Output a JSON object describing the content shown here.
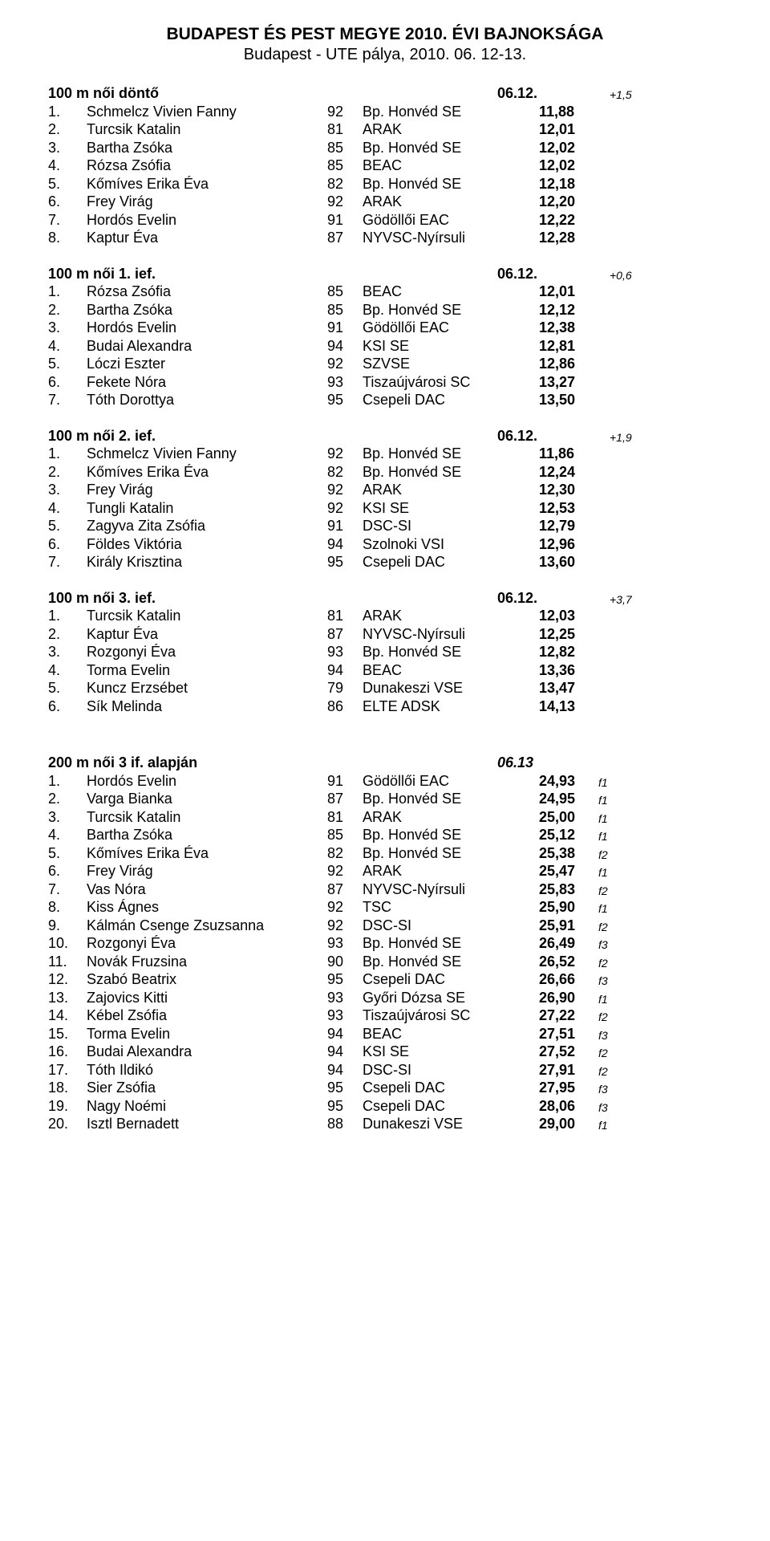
{
  "header": {
    "title": "BUDAPEST ÉS PEST MEGYE 2010. ÉVI BAJNOKSÁGA",
    "subtitle": "Budapest - UTE pálya, 2010. 06. 12-13."
  },
  "sections": [
    {
      "title": "100 m női döntő",
      "date": "06.12.",
      "note": "+1,5",
      "rows": [
        {
          "rank": "1.",
          "name": "Schmelcz Vivien Fanny",
          "yr": "92",
          "club": "Bp. Honvéd SE",
          "time": "11,88",
          "flag": ""
        },
        {
          "rank": "2.",
          "name": "Turcsik Katalin",
          "yr": "81",
          "club": "ARAK",
          "time": "12,01",
          "flag": ""
        },
        {
          "rank": "3.",
          "name": "Bartha Zsóka",
          "yr": "85",
          "club": "Bp. Honvéd SE",
          "time": "12,02",
          "flag": ""
        },
        {
          "rank": "4.",
          "name": "Rózsa Zsófia",
          "yr": "85",
          "club": "BEAC",
          "time": "12,02",
          "flag": ""
        },
        {
          "rank": "5.",
          "name": "Kőmíves Erika Éva",
          "yr": "82",
          "club": "Bp. Honvéd SE",
          "time": "12,18",
          "flag": ""
        },
        {
          "rank": "6.",
          "name": "Frey Virág",
          "yr": "92",
          "club": "ARAK",
          "time": "12,20",
          "flag": ""
        },
        {
          "rank": "7.",
          "name": "Hordós Evelin",
          "yr": "91",
          "club": "Gödöllői EAC",
          "time": "12,22",
          "flag": ""
        },
        {
          "rank": "8.",
          "name": "Kaptur Éva",
          "yr": "87",
          "club": "NYVSC-Nyírsuli",
          "time": "12,28",
          "flag": ""
        }
      ]
    },
    {
      "title": "100 m női 1. ief.",
      "date": "06.12.",
      "note": "+0,6",
      "rows": [
        {
          "rank": "1.",
          "name": "Rózsa Zsófia",
          "yr": "85",
          "club": "BEAC",
          "time": "12,01",
          "flag": ""
        },
        {
          "rank": "2.",
          "name": "Bartha Zsóka",
          "yr": "85",
          "club": "Bp. Honvéd SE",
          "time": "12,12",
          "flag": ""
        },
        {
          "rank": "3.",
          "name": "Hordós Evelin",
          "yr": "91",
          "club": "Gödöllői EAC",
          "time": "12,38",
          "flag": ""
        },
        {
          "rank": "4.",
          "name": "Budai Alexandra",
          "yr": "94",
          "club": "KSI SE",
          "time": "12,81",
          "flag": ""
        },
        {
          "rank": "5.",
          "name": "Lóczi Eszter",
          "yr": "92",
          "club": "SZVSE",
          "time": "12,86",
          "flag": ""
        },
        {
          "rank": "6.",
          "name": "Fekete Nóra",
          "yr": "93",
          "club": "Tiszaújvárosi SC",
          "time": "13,27",
          "flag": ""
        },
        {
          "rank": "7.",
          "name": "Tóth Dorottya",
          "yr": "95",
          "club": "Csepeli DAC",
          "time": "13,50",
          "flag": ""
        }
      ]
    },
    {
      "title": "100 m női 2. ief.",
      "date": "06.12.",
      "note": "+1,9",
      "rows": [
        {
          "rank": "1.",
          "name": "Schmelcz Vivien Fanny",
          "yr": "92",
          "club": "Bp. Honvéd SE",
          "time": "11,86",
          "flag": ""
        },
        {
          "rank": "2.",
          "name": "Kőmíves Erika Éva",
          "yr": "82",
          "club": "Bp. Honvéd SE",
          "time": "12,24",
          "flag": ""
        },
        {
          "rank": "3.",
          "name": "Frey Virág",
          "yr": "92",
          "club": "ARAK",
          "time": "12,30",
          "flag": ""
        },
        {
          "rank": "4.",
          "name": "Tungli Katalin",
          "yr": "92",
          "club": "KSI SE",
          "time": "12,53",
          "flag": ""
        },
        {
          "rank": "5.",
          "name": "Zagyva Zita Zsófia",
          "yr": "91",
          "club": "DSC-SI",
          "time": "12,79",
          "flag": ""
        },
        {
          "rank": "6.",
          "name": "Földes Viktória",
          "yr": "94",
          "club": "Szolnoki VSI",
          "time": "12,96",
          "flag": ""
        },
        {
          "rank": "7.",
          "name": "Király Krisztina",
          "yr": "95",
          "club": "Csepeli DAC",
          "time": "13,60",
          "flag": ""
        }
      ]
    },
    {
      "title": "100 m női 3. ief.",
      "date": "06.12.",
      "note": "+3,7",
      "rows": [
        {
          "rank": "1.",
          "name": "Turcsik Katalin",
          "yr": "81",
          "club": "ARAK",
          "time": "12,03",
          "flag": ""
        },
        {
          "rank": "2.",
          "name": "Kaptur Éva",
          "yr": "87",
          "club": "NYVSC-Nyírsuli",
          "time": "12,25",
          "flag": ""
        },
        {
          "rank": "3.",
          "name": "Rozgonyi Éva",
          "yr": "93",
          "club": "Bp. Honvéd SE",
          "time": "12,82",
          "flag": ""
        },
        {
          "rank": "4.",
          "name": "Torma Evelin",
          "yr": "94",
          "club": "BEAC",
          "time": "13,36",
          "flag": ""
        },
        {
          "rank": "5.",
          "name": "Kuncz Erzsébet",
          "yr": "79",
          "club": "Dunakeszi VSE",
          "time": "13,47",
          "flag": ""
        },
        {
          "rank": "6.",
          "name": "Sík Melinda",
          "yr": "86",
          "club": "ELTE ADSK",
          "time": "14,13",
          "flag": ""
        }
      ]
    },
    {
      "title": "200 m női 3 if. alapján",
      "date": "06.13",
      "note": "",
      "extraTop": true,
      "rows": [
        {
          "rank": "1.",
          "name": "Hordós Evelin",
          "yr": "91",
          "club": "Gödöllői EAC",
          "time": "24,93",
          "flag": "f1"
        },
        {
          "rank": "2.",
          "name": "Varga Bianka",
          "yr": "87",
          "club": "Bp. Honvéd SE",
          "time": "24,95",
          "flag": "f1"
        },
        {
          "rank": "3.",
          "name": "Turcsik Katalin",
          "yr": "81",
          "club": "ARAK",
          "time": "25,00",
          "flag": "f1"
        },
        {
          "rank": "4.",
          "name": "Bartha Zsóka",
          "yr": "85",
          "club": "Bp. Honvéd SE",
          "time": "25,12",
          "flag": "f1"
        },
        {
          "rank": "5.",
          "name": "Kőmíves Erika Éva",
          "yr": "82",
          "club": "Bp. Honvéd SE",
          "time": "25,38",
          "flag": "f2"
        },
        {
          "rank": "6.",
          "name": "Frey Virág",
          "yr": "92",
          "club": "ARAK",
          "time": "25,47",
          "flag": "f1"
        },
        {
          "rank": "7.",
          "name": "Vas Nóra",
          "yr": "87",
          "club": "NYVSC-Nyírsuli",
          "time": "25,83",
          "flag": "f2"
        },
        {
          "rank": "8.",
          "name": "Kiss Ágnes",
          "yr": "92",
          "club": "TSC",
          "time": "25,90",
          "flag": "f1"
        },
        {
          "rank": "9.",
          "name": "Kálmán Csenge Zsuzsanna",
          "yr": "92",
          "club": "DSC-SI",
          "time": "25,91",
          "flag": "f2"
        },
        {
          "rank": "10.",
          "name": "Rozgonyi Éva",
          "yr": "93",
          "club": "Bp. Honvéd SE",
          "time": "26,49",
          "flag": "f3"
        },
        {
          "rank": "11.",
          "name": "Novák Fruzsina",
          "yr": "90",
          "club": "Bp. Honvéd SE",
          "time": "26,52",
          "flag": "f2"
        },
        {
          "rank": "12.",
          "name": "Szabó Beatrix",
          "yr": "95",
          "club": "Csepeli DAC",
          "time": "26,66",
          "flag": "f3"
        },
        {
          "rank": "13.",
          "name": "Zajovics Kitti",
          "yr": "93",
          "club": "Győri Dózsa SE",
          "time": "26,90",
          "flag": "f1"
        },
        {
          "rank": "14.",
          "name": "Kébel Zsófia",
          "yr": "93",
          "club": "Tiszaújvárosi SC",
          "time": "27,22",
          "flag": "f2"
        },
        {
          "rank": "15.",
          "name": "Torma Evelin",
          "yr": "94",
          "club": "BEAC",
          "time": "27,51",
          "flag": "f3"
        },
        {
          "rank": "16.",
          "name": "Budai Alexandra",
          "yr": "94",
          "club": "KSI SE",
          "time": "27,52",
          "flag": "f2"
        },
        {
          "rank": "17.",
          "name": "Tóth Ildikó",
          "yr": "94",
          "club": "DSC-SI",
          "time": "27,91",
          "flag": "f2"
        },
        {
          "rank": "18.",
          "name": "Sier Zsófia",
          "yr": "95",
          "club": "Csepeli DAC",
          "time": "27,95",
          "flag": "f3"
        },
        {
          "rank": "19.",
          "name": "Nagy Noémi",
          "yr": "95",
          "club": "Csepeli DAC",
          "time": "28,06",
          "flag": "f3"
        },
        {
          "rank": "20.",
          "name": "Isztl Bernadett",
          "yr": "88",
          "club": "Dunakeszi VSE",
          "time": "29,00",
          "flag": "f1"
        }
      ]
    }
  ]
}
